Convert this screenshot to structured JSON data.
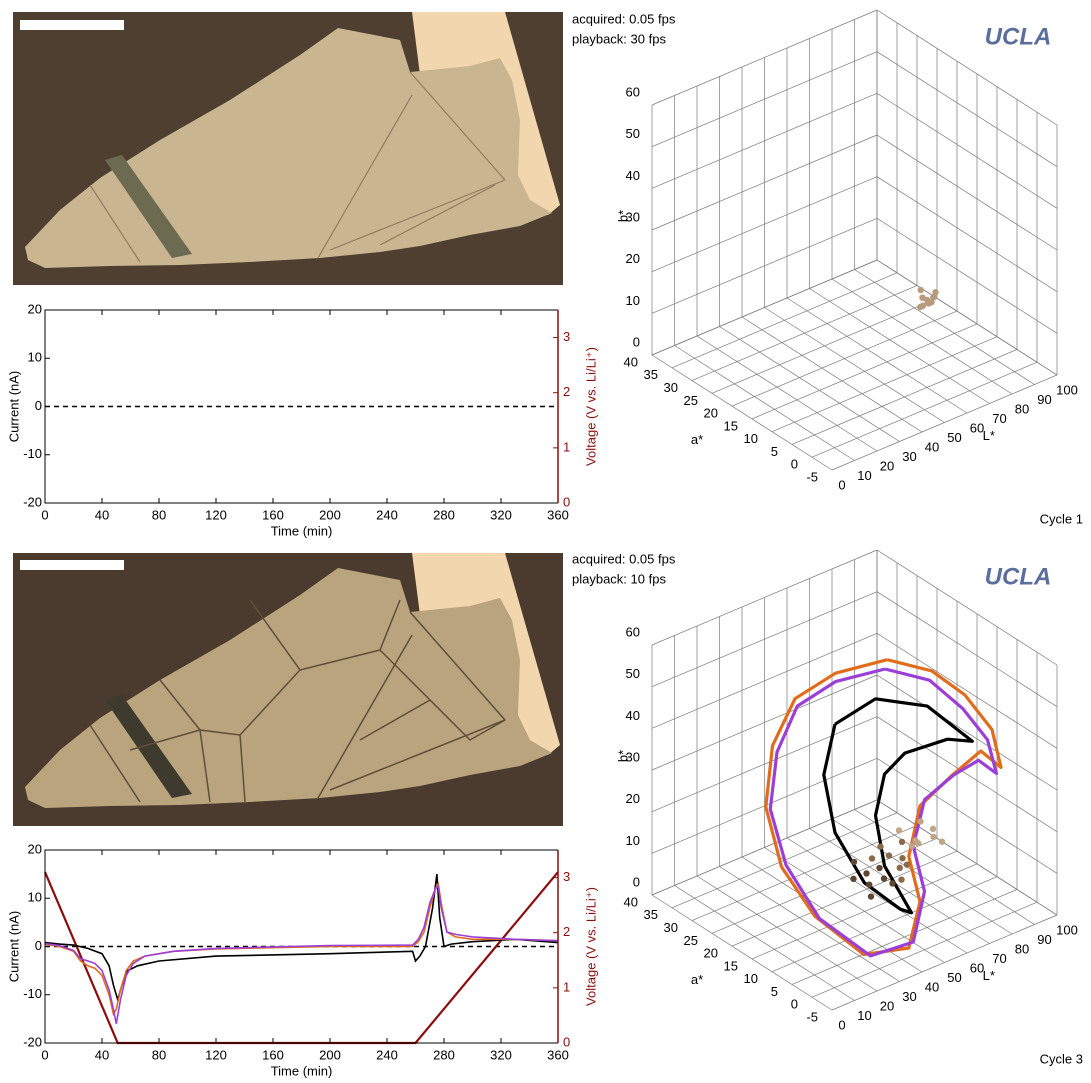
{
  "panels": [
    {
      "acquired": "acquired: 0.05 fps",
      "playback": "playback: 30 fps",
      "logo": "UCLA",
      "label": "Cycle 1"
    },
    {
      "acquired": "acquired: 0.05 fps",
      "playback": "playback: 10 fps",
      "logo": "UCLA",
      "label": "Cycle 3"
    }
  ],
  "chart_data": [
    {
      "type": "line",
      "xlabel": "Time (min)",
      "ylabel": "Current (nA)",
      "y2label": "Voltage (V vs. Li/Li⁺)",
      "xlim": [
        0,
        360
      ],
      "xticks": [
        0,
        40,
        80,
        120,
        160,
        200,
        240,
        280,
        320,
        360
      ],
      "ylim": [
        -20,
        20
      ],
      "yticks": [
        -20,
        -10,
        0,
        10,
        20
      ],
      "y2lim": [
        0,
        3.5
      ],
      "y2ticks": [
        0,
        1,
        2,
        3
      ],
      "hline": 0,
      "series": []
    },
    {
      "type": "scatter3d",
      "xlabel": "L*",
      "ylabel": "a*",
      "zlabel": "b*",
      "xlim": [
        0,
        100
      ],
      "xticks": [
        0,
        10,
        20,
        30,
        40,
        50,
        60,
        70,
        80,
        90,
        100
      ],
      "ylim": [
        -5,
        40
      ],
      "yticks": [
        -5,
        0,
        5,
        10,
        15,
        20,
        25,
        30,
        35,
        40
      ],
      "zlim": [
        0,
        60
      ],
      "zticks": [
        0,
        10,
        20,
        30,
        40,
        50,
        60
      ],
      "series": [
        {
          "color": "#b89a7c",
          "mode": "markers",
          "x": [
            58,
            60,
            62,
            59,
            61,
            63,
            57,
            60,
            62,
            59
          ],
          "y": [
            5,
            5,
            5,
            6,
            4,
            5,
            5,
            6,
            4,
            4
          ],
          "z": [
            22,
            21,
            20,
            23,
            22,
            21,
            20,
            19,
            23,
            21
          ]
        }
      ]
    },
    {
      "type": "line",
      "xlabel": "Time (min)",
      "ylabel": "Current (nA)",
      "y2label": "Voltage (V vs. Li/Li⁺)",
      "xlim": [
        0,
        360
      ],
      "xticks": [
        0,
        40,
        80,
        120,
        160,
        200,
        240,
        280,
        320,
        360
      ],
      "ylim": [
        -20,
        20
      ],
      "yticks": [
        -20,
        -10,
        0,
        10,
        20
      ],
      "y2lim": [
        0,
        3.5
      ],
      "y2ticks": [
        0,
        1,
        2,
        3
      ],
      "hline": 0,
      "series": [
        {
          "color": "#8b0d0d",
          "axis": "y2",
          "x": [
            0,
            51,
            260,
            360
          ],
          "values": [
            3.1,
            0,
            0,
            3.1
          ]
        },
        {
          "color": "#000000",
          "axis": "y",
          "x": [
            0,
            10,
            20,
            30,
            40,
            45,
            48,
            51,
            54,
            58,
            65,
            80,
            120,
            200,
            258,
            260,
            263,
            267,
            272,
            275,
            277,
            280,
            285,
            300,
            330,
            360
          ],
          "values": [
            0.8,
            0.5,
            0.3,
            -0.4,
            -1.5,
            -4,
            -8,
            -11,
            -8,
            -5,
            -4,
            -3,
            -2,
            -1.5,
            -1,
            -3,
            -2,
            0,
            8,
            15,
            6,
            0,
            0.5,
            1,
            1.5,
            0.8
          ]
        },
        {
          "color": "#e06c1c",
          "axis": "y",
          "x": [
            0,
            10,
            20,
            25,
            30,
            35,
            40,
            45,
            48,
            50,
            53,
            57,
            62,
            70,
            90,
            120,
            200,
            258,
            262,
            266,
            270,
            274,
            276,
            278,
            282,
            288,
            300,
            330,
            360
          ],
          "values": [
            0.5,
            0,
            -1,
            -3,
            -4,
            -4.5,
            -6,
            -10,
            -14,
            -13,
            -9,
            -5,
            -3,
            -2,
            -1,
            -0.5,
            0,
            0,
            1,
            3,
            8,
            12,
            13,
            9,
            3,
            2,
            1.5,
            1.5,
            1.2
          ]
        },
        {
          "color": "#9b3fd6",
          "axis": "y",
          "x": [
            0,
            10,
            20,
            25,
            30,
            35,
            40,
            45,
            48,
            50,
            53,
            57,
            62,
            70,
            90,
            120,
            200,
            258,
            262,
            266,
            270,
            274,
            276,
            278,
            282,
            288,
            300,
            330,
            360
          ],
          "values": [
            0.6,
            0.2,
            -0.8,
            -2.5,
            -3,
            -3.5,
            -5,
            -9,
            -13,
            -16,
            -11,
            -6,
            -3.5,
            -2,
            -1,
            -0.4,
            0.2,
            0.3,
            1.5,
            4,
            9,
            12,
            12.5,
            8,
            3,
            2.5,
            2,
            1.5,
            1.2
          ]
        }
      ]
    },
    {
      "type": "scatter3d",
      "xlabel": "L*",
      "ylabel": "a*",
      "zlabel": "b*",
      "xlim": [
        0,
        100
      ],
      "xticks": [
        0,
        10,
        20,
        30,
        40,
        50,
        60,
        70,
        80,
        90,
        100
      ],
      "ylim": [
        -5,
        40
      ],
      "yticks": [
        -5,
        0,
        5,
        10,
        15,
        20,
        25,
        30,
        35,
        40
      ],
      "zlim": [
        0,
        60
      ],
      "zticks": [
        0,
        10,
        20,
        30,
        40,
        50,
        60
      ],
      "series": [
        {
          "color": "#e06c1c",
          "mode": "lines",
          "x": [
            69,
            46,
            28,
            18,
            15,
            22,
            19,
            23,
            43,
            48,
            43,
            48,
            62,
            75,
            84,
            80,
            68,
            71,
            69
          ],
          "y": [
            20,
            20,
            20,
            20,
            20,
            20,
            10,
            0,
            0,
            0,
            0,
            0,
            0,
            0,
            0,
            0,
            0,
            10,
            20
          ],
          "z": [
            53,
            55,
            53,
            44,
            30,
            14,
            9,
            5,
            2,
            12,
            24,
            35,
            39,
            42,
            36,
            46,
            57,
            56,
            53
          ]
        },
        {
          "color": "#9b3fd6",
          "mode": "lines",
          "x": [
            68,
            46,
            29,
            20,
            17,
            24,
            21,
            26,
            45,
            50,
            45,
            50,
            63,
            74,
            82,
            78,
            67,
            70,
            68
          ],
          "y": [
            20,
            20,
            20,
            20,
            20,
            20,
            10,
            0,
            0,
            0,
            0,
            0,
            0,
            0,
            0,
            0,
            0,
            10,
            20
          ],
          "z": [
            51,
            53,
            51,
            42,
            29,
            14,
            8,
            4,
            3,
            14,
            26,
            36,
            39,
            40,
            35,
            44,
            54,
            54,
            51
          ]
        },
        {
          "color": "#000000",
          "mode": "lines",
          "x": [
            28,
            46,
            69,
            89,
            78,
            59,
            50,
            46,
            50,
            62,
            57,
            41,
            28,
            23,
            28
          ],
          "y": [
            10,
            10,
            10,
            10,
            10,
            10,
            10,
            10,
            10,
            10,
            10,
            10,
            10,
            10,
            10
          ],
          "z": [
            53,
            55,
            48,
            35,
            38,
            39,
            36,
            27,
            14,
            0,
            2,
            12,
            27,
            42,
            53
          ]
        },
        {
          "color": "#5e4630",
          "mode": "markers",
          "x": [
            42,
            45,
            48,
            40,
            44,
            50,
            38,
            46
          ],
          "y": [
            10,
            11,
            9,
            12,
            10,
            8,
            11,
            9
          ],
          "z": [
            14,
            10,
            12,
            16,
            8,
            11,
            13,
            15
          ]
        },
        {
          "color": "#8a6a4a",
          "mode": "markers",
          "x": [
            52,
            55,
            50,
            58,
            54,
            48,
            56,
            60
          ],
          "y": [
            10,
            9,
            11,
            10,
            8,
            12,
            9,
            10
          ],
          "z": [
            16,
            13,
            18,
            14,
            11,
            15,
            19,
            12
          ]
        },
        {
          "color": "#c2a585",
          "mode": "markers",
          "x": [
            62,
            65,
            68,
            64,
            70,
            66,
            60,
            72
          ],
          "y": [
            9,
            10,
            8,
            11,
            9,
            10,
            12,
            8
          ],
          "z": [
            18,
            16,
            20,
            15,
            17,
            21,
            19,
            16
          ]
        }
      ]
    }
  ]
}
